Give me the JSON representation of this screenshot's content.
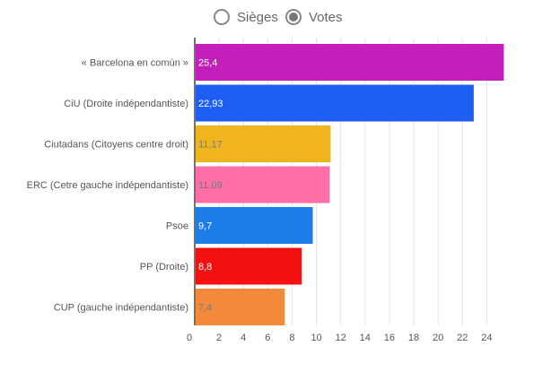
{
  "toggle": {
    "sieges_label": "Sièges",
    "votes_label": "Votes",
    "selected": "votes"
  },
  "chart_data": {
    "type": "bar",
    "orientation": "horizontal",
    "categories": [
      "« Barcelona en comùn »",
      "CiU (Droite indépendantiste)",
      "Ciutadans (Citoyens centre droit)",
      "ERC (Cetre gauche indépendantiste)",
      "Psoe",
      "PP (Droite)",
      "CUP (gauche indépendantiste)"
    ],
    "values": [
      25.4,
      22.93,
      11.17,
      11.09,
      9.7,
      8.8,
      7.4
    ],
    "value_labels": [
      "25,4",
      "22,93",
      "11,17",
      "11,09",
      "9,7",
      "8,8",
      "7,4"
    ],
    "colors": [
      "#c41fbb",
      "#1f5ef5",
      "#f0b51c",
      "#ff6ea7",
      "#1a7de8",
      "#f21010",
      "#f28a3a"
    ],
    "value_label_colors": [
      "#ffffff",
      "#ffffff",
      "#7a7a7a",
      "#7a7a7a",
      "#ffffff",
      "#ffffff",
      "#7a7a7a"
    ],
    "x_ticks": [
      0,
      2,
      4,
      6,
      8,
      10,
      12,
      14,
      16,
      18,
      20,
      22,
      24
    ],
    "xlim": [
      0,
      26
    ],
    "grid": true
  }
}
